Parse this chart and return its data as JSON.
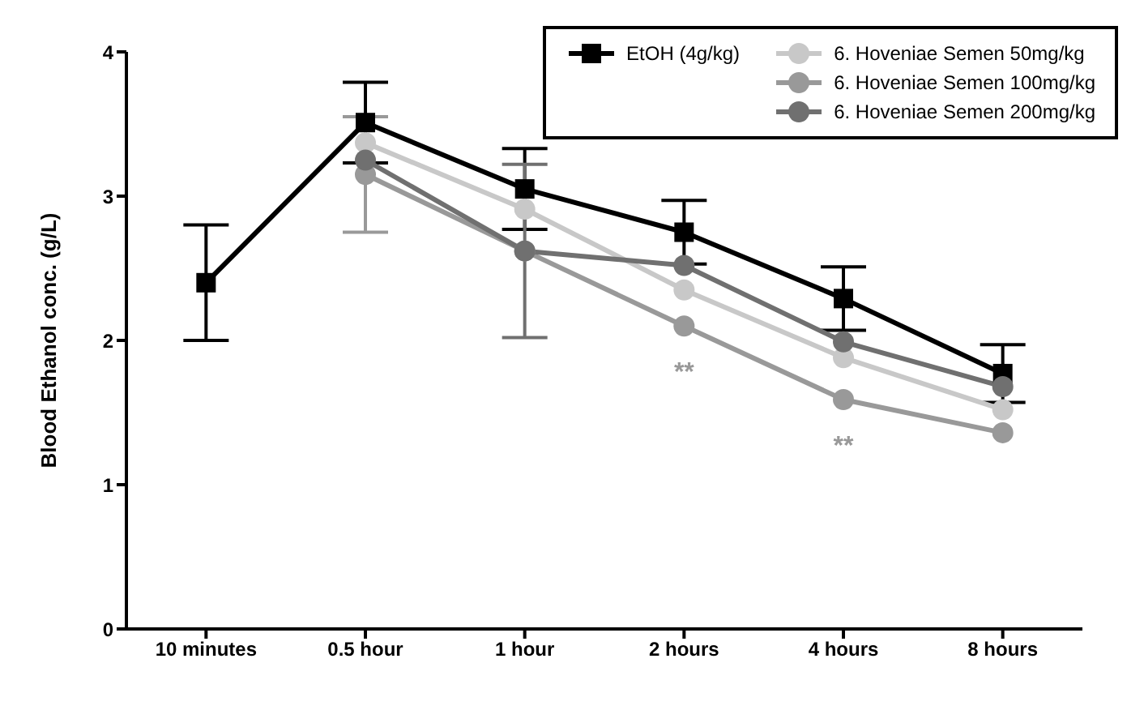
{
  "chart_data": {
    "type": "line",
    "ylabel": "Blood Ethanol conc. (g/L)",
    "categories": [
      "10 minutes",
      "0.5 hour",
      "1 hour",
      "2 hours",
      "4 hours",
      "8 hours"
    ],
    "ylim": [
      0,
      4
    ],
    "yticks": [
      0,
      1,
      2,
      3,
      4
    ],
    "legend": "top right",
    "series": [
      {
        "name": "EtOH (4g/kg)",
        "color": "#000000",
        "marker": "square",
        "values": [
          2.4,
          3.51,
          3.05,
          2.75,
          2.29,
          1.77
        ],
        "errors": [
          0.4,
          0.28,
          0.28,
          0.22,
          0.22,
          0.2
        ]
      },
      {
        "name": "6. Hoveniae Semen 50mg/kg",
        "color": "#c8c8c8",
        "marker": "circle",
        "values": [
          null,
          3.37,
          2.91,
          2.35,
          1.88,
          1.52
        ]
      },
      {
        "name": "6. Hoveniae Semen 100mg/kg",
        "color": "#999999",
        "marker": "circle",
        "values": [
          null,
          3.15,
          2.62,
          2.1,
          1.59,
          1.36
        ],
        "errors": [
          null,
          0.4,
          null,
          null,
          null,
          null
        ]
      },
      {
        "name": "6. Hoveniae Semen 200mg/kg",
        "color": "#707070",
        "marker": "circle",
        "values": [
          null,
          3.25,
          2.62,
          2.52,
          1.99,
          1.68
        ],
        "errors": [
          null,
          null,
          0.6,
          null,
          null,
          null
        ]
      }
    ],
    "annotations": [
      {
        "text": "**",
        "x": "2 hours",
        "y": 2.1
      },
      {
        "text": "**",
        "x": "4 hours",
        "y": 1.59
      }
    ]
  }
}
